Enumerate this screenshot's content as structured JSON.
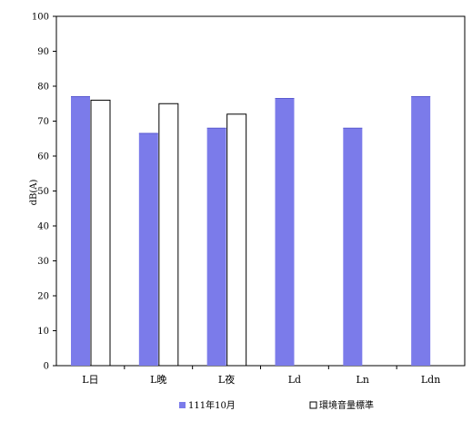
{
  "chart_data": {
    "type": "bar",
    "categories": [
      "L日",
      "L晚",
      "L夜",
      "Ld",
      "Ln",
      "Ldn"
    ],
    "series": [
      {
        "name": "111年10月",
        "values": [
          77,
          66.5,
          68,
          76.5,
          68,
          77
        ],
        "color": "#7b7bea",
        "fill_style": "solid"
      },
      {
        "name": "環境音量標準",
        "values": [
          76,
          75,
          72,
          null,
          null,
          null
        ],
        "color": "#ffffff",
        "fill_style": "outline"
      }
    ],
    "title": "",
    "xlabel": "",
    "ylabel": "dB(A)",
    "ylim": [
      0,
      100
    ],
    "yticks": [
      0,
      10,
      20,
      30,
      40,
      50,
      60,
      70,
      80,
      90,
      100
    ],
    "grid": false,
    "legend_position": "bottom"
  }
}
